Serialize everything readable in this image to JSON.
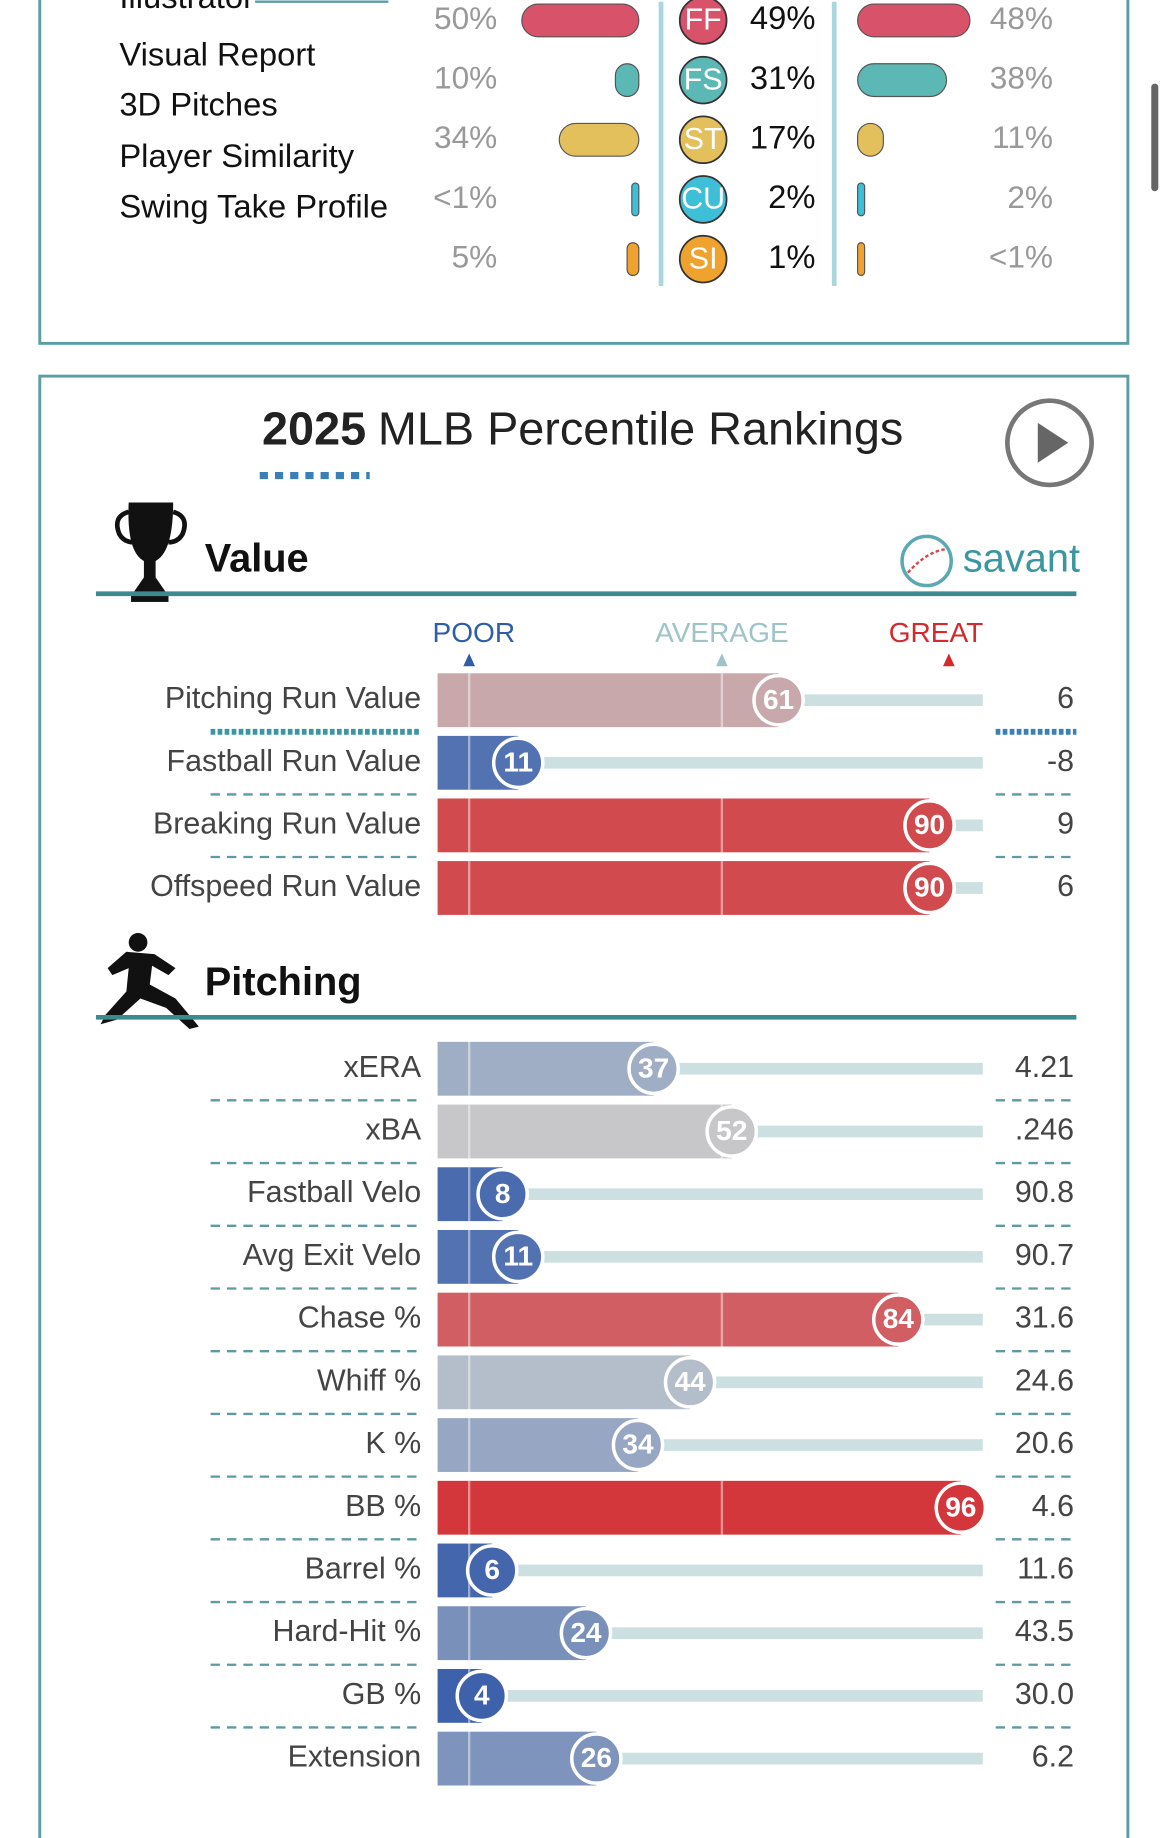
{
  "menu": [
    "Illustrator",
    "Visual Report",
    "3D Pitches",
    "Player Similarity",
    "Swing Take Profile"
  ],
  "pitch_mix": {
    "rows": [
      {
        "pitch": "FF",
        "color": "#d8536a",
        "left": {
          "value": 50,
          "label": "50%"
        },
        "usage": "49%",
        "right": {
          "value": 48,
          "label": "48%"
        }
      },
      {
        "pitch": "FS",
        "color": "#5bb8b4",
        "left": {
          "value": 10,
          "label": "10%"
        },
        "usage": "31%",
        "right": {
          "value": 38,
          "label": "38%"
        }
      },
      {
        "pitch": "ST",
        "color": "#e3c05c",
        "left": {
          "value": 34,
          "label": "34%"
        },
        "usage": "17%",
        "right": {
          "value": 11,
          "label": "11%"
        }
      },
      {
        "pitch": "CU",
        "color": "#3dbfd8",
        "left": {
          "value": 0.5,
          "label": "<1%"
        },
        "usage": "2%",
        "right": {
          "value": 2,
          "label": "2%"
        }
      },
      {
        "pitch": "SI",
        "color": "#f0a22e",
        "left": {
          "value": 5,
          "label": "5%"
        },
        "usage": "1%",
        "right": {
          "value": 0.5,
          "label": "<1%"
        }
      }
    ]
  },
  "rankings": {
    "title_year": "2025",
    "title": "MLB Percentile Rankings",
    "brand": "savant",
    "scale": {
      "poor": "POOR",
      "average": "AVERAGE",
      "great": "GREAT"
    },
    "colors": [
      "#3258a8",
      "#c6cccf",
      "#d42a2e"
    ],
    "sections": [
      {
        "title": "Value",
        "rows": [
          {
            "label": "Pitching Run Value",
            "percentile": 61,
            "value": "6"
          },
          {
            "label": "Fastball Run Value",
            "percentile": 11,
            "value": "-8"
          },
          {
            "label": "Breaking Run Value",
            "percentile": 90,
            "value": "9"
          },
          {
            "label": "Offspeed Run Value",
            "percentile": 90,
            "value": "6"
          }
        ]
      },
      {
        "title": "Pitching",
        "rows": [
          {
            "label": "xERA",
            "percentile": 37,
            "value": "4.21"
          },
          {
            "label": "xBA",
            "percentile": 52,
            "value": ".246"
          },
          {
            "label": "Fastball Velo",
            "percentile": 8,
            "value": "90.8"
          },
          {
            "label": "Avg Exit Velo",
            "percentile": 11,
            "value": "90.7"
          },
          {
            "label": "Chase %",
            "percentile": 84,
            "value": "31.6"
          },
          {
            "label": "Whiff %",
            "percentile": 44,
            "value": "24.6"
          },
          {
            "label": "K %",
            "percentile": 34,
            "value": "20.6"
          },
          {
            "label": "BB %",
            "percentile": 96,
            "value": "4.6"
          },
          {
            "label": "Barrel %",
            "percentile": 6,
            "value": "11.6"
          },
          {
            "label": "Hard-Hit %",
            "percentile": 24,
            "value": "43.5"
          },
          {
            "label": "GB %",
            "percentile": 4,
            "value": "30.0"
          },
          {
            "label": "Extension",
            "percentile": 26,
            "value": "6.2"
          }
        ]
      }
    ]
  }
}
